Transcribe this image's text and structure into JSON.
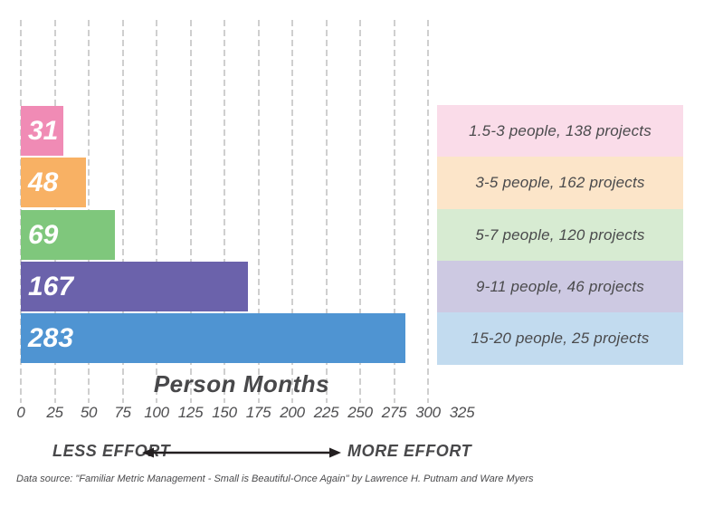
{
  "chart_data": {
    "type": "bar",
    "orientation": "horizontal",
    "title": "",
    "xlabel": "Person Months",
    "xlim": [
      0,
      325
    ],
    "x_ticks": [
      0,
      25,
      50,
      75,
      100,
      125,
      150,
      175,
      200,
      225,
      250,
      275,
      300,
      325
    ],
    "gridlines_at": [
      0,
      25,
      50,
      75,
      100,
      125,
      150,
      175,
      200,
      225,
      250,
      275,
      300
    ],
    "grid": "dashed-vertical",
    "legend_position": "right",
    "bars": [
      {
        "value": 31,
        "value_label": "31",
        "legend": "1.5-3 people, 138 projects",
        "bar_color": "#f08bb5",
        "legend_color": "#fadce9"
      },
      {
        "value": 48,
        "value_label": "48",
        "legend": "3-5 people, 162 projects",
        "bar_color": "#f8b164",
        "legend_color": "#fce5c9"
      },
      {
        "value": 69,
        "value_label": "69",
        "legend": "5-7 people, 120 projects",
        "bar_color": "#7fc77c",
        "legend_color": "#d7ebd2"
      },
      {
        "value": 167,
        "value_label": "167",
        "legend": "9-11 people, 46 projects",
        "bar_color": "#6b62ab",
        "legend_color": "#cdc9e2"
      },
      {
        "value": 283,
        "value_label": "283",
        "legend": "15-20 people, 25 projects",
        "bar_color": "#4f94d2",
        "legend_color": "#c2dbef"
      }
    ],
    "annotations": {
      "less_effort": "LESS EFFORT",
      "more_effort": "MORE EFFORT"
    },
    "source": "Data source: \"Familiar Metric Management - Small is Beautiful-Once Again\" by Lawrence H. Putnam and Ware Myers",
    "colors": {
      "gridline": "#cfcfcf",
      "text": "#48484a",
      "bar_value_text": "#ffffff",
      "arrow": "#231f20"
    }
  }
}
